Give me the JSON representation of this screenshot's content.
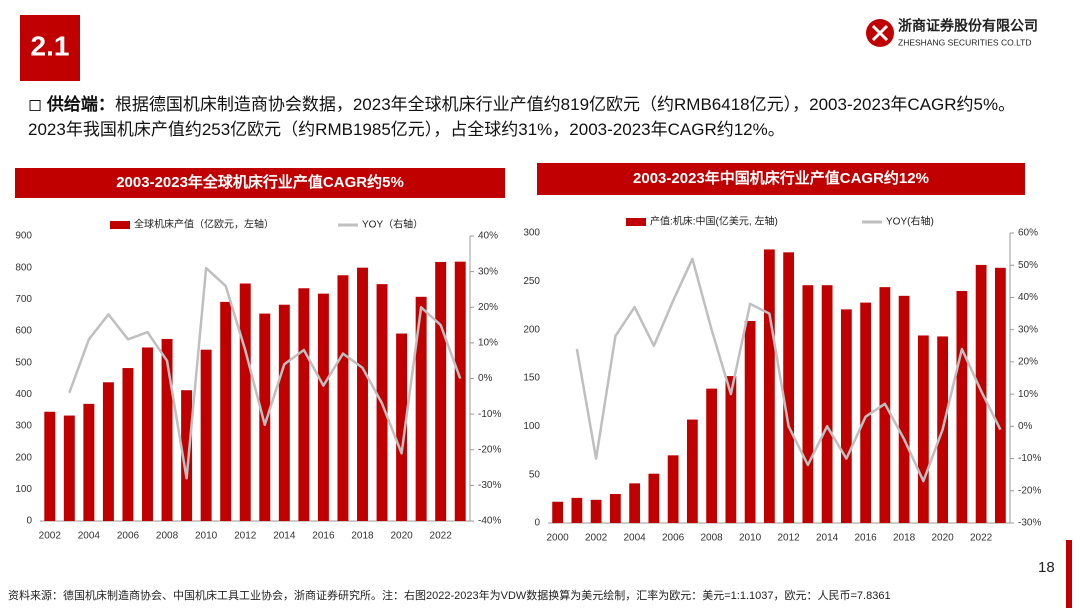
{
  "header": {
    "section": "2.1",
    "company": "浙商证券股份有限公司",
    "company_en": "ZHESHANG SECURITIES CO.LTD"
  },
  "bullet": {
    "label": "供给端：",
    "text": "根据德国机床制造商协会数据，2023年全球机床行业产值约819亿欧元（约RMB6418亿元），2003-2023年CAGR约5%。2023年我国机床产值约253亿欧元（约RMB1985亿元），占全球约31%，2003-2023年CAGR约12%。"
  },
  "chart_data": [
    {
      "type": "bar",
      "title": "2003-2023年全球机床行业产值CAGR约5%",
      "categories": [
        2002,
        null,
        2004,
        null,
        2006,
        null,
        2008,
        null,
        2010,
        null,
        2012,
        null,
        2014,
        null,
        2016,
        null,
        2018,
        null,
        2020,
        null,
        2022,
        null
      ],
      "series": [
        {
          "name": "全球机床产值（亿欧元，左轴）",
          "color": "#c00000",
          "values": [
            345,
            333,
            370,
            438,
            483,
            548,
            575,
            413,
            541,
            692,
            750,
            655,
            683,
            735,
            718,
            776,
            800,
            748,
            592,
            708,
            818,
            819
          ]
        },
        {
          "name": "YOY（右轴）",
          "color": "#bfbfbf",
          "type": "line",
          "axis": "y2",
          "values": [
            null,
            -4,
            11,
            18,
            11,
            13,
            5,
            -28,
            31,
            26,
            8,
            -13,
            4,
            8,
            -2,
            7,
            3,
            -7,
            -21,
            20,
            15,
            0
          ]
        }
      ],
      "ylim": [
        0,
        900
      ],
      "yticks": [
        0,
        100,
        200,
        300,
        400,
        500,
        600,
        700,
        800,
        900
      ],
      "y2lim": [
        -40,
        40
      ],
      "y2ticks": [
        {
          "value": -40,
          "label": "-40%"
        },
        {
          "value": -30,
          "label": "-30%"
        },
        {
          "value": -20,
          "label": "-20%"
        },
        {
          "value": -10,
          "label": "-10%"
        },
        {
          "value": 0,
          "label": "0%"
        },
        {
          "value": 10,
          "label": "10%"
        },
        {
          "value": 20,
          "label": "20%"
        },
        {
          "value": 30,
          "label": "30%"
        },
        {
          "value": 40,
          "label": "40%"
        }
      ],
      "legend": "top",
      "grid": false
    },
    {
      "type": "bar",
      "title": "2003-2023年中国机床行业产值CAGR约12%",
      "categories": [
        2000,
        null,
        2002,
        null,
        2004,
        null,
        2006,
        null,
        2008,
        null,
        2010,
        null,
        2012,
        null,
        2014,
        null,
        2016,
        null,
        2018,
        null,
        2020,
        null,
        2022,
        null
      ],
      "series": [
        {
          "name": "产值:机床:中国(亿美元, 左轴)",
          "color": "#c00000",
          "values": [
            22,
            26,
            24,
            30,
            41,
            51,
            70,
            107,
            139,
            152,
            209,
            283,
            280,
            246,
            246,
            221,
            228,
            244,
            235,
            194,
            193,
            240,
            267,
            264
          ]
        },
        {
          "name": "YOY(右轴)",
          "color": "#bfbfbf",
          "type": "line",
          "axis": "y2",
          "values": [
            null,
            24,
            -10,
            28,
            37,
            25,
            39,
            52,
            30,
            10,
            38,
            35,
            0,
            -12,
            0,
            -10,
            3,
            7,
            -4,
            -17,
            -1,
            24,
            11,
            -1
          ]
        }
      ],
      "ylim": [
        0,
        300
      ],
      "yticks": [
        0,
        50,
        100,
        150,
        200,
        250,
        300
      ],
      "y2lim": [
        -30,
        60
      ],
      "y2ticks": [
        {
          "value": -30,
          "label": "-30%"
        },
        {
          "value": -20,
          "label": "-20%"
        },
        {
          "value": -10,
          "label": "-10%"
        },
        {
          "value": 0,
          "label": "0%"
        },
        {
          "value": 10,
          "label": "10%"
        },
        {
          "value": 20,
          "label": "20%"
        },
        {
          "value": 30,
          "label": "30%"
        },
        {
          "value": 40,
          "label": "40%"
        },
        {
          "value": 50,
          "label": "50%"
        },
        {
          "value": 60,
          "label": "60%"
        }
      ],
      "legend": "top",
      "grid": false
    }
  ],
  "footer": {
    "source": "资料来源：德国机床制造商协会、中国机床工具工业协会，浙商证券研究所。注：右图2022-2023年为VDW数据换算为美元绘制，汇率为欧元：美元=1:1.1037，欧元：人民币=7.8361",
    "page": "18"
  }
}
